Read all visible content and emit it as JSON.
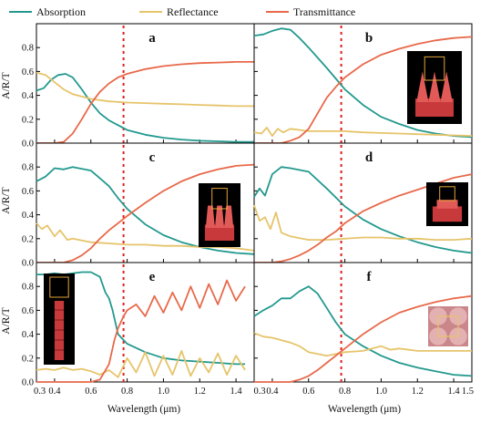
{
  "legend": [
    {
      "label": "Absorption",
      "color": "#23998e"
    },
    {
      "label": "Reflectance",
      "color": "#e6c46a"
    },
    {
      "label": "Transmittance",
      "color": "#e8694a"
    }
  ],
  "colors": {
    "absorption": "#23998e",
    "reflectance": "#e6c46a",
    "transmittance": "#e8694a",
    "marker": "#e0201b"
  },
  "axes": {
    "ylabel": "A/R/T",
    "xlabel": "Wavelength (μm)",
    "yticks": [
      "0.0",
      "0.2",
      "0.4",
      "0.6",
      "0.8"
    ],
    "xticks_left": [
      "0.3",
      "0.4",
      "0.6",
      "0.8",
      "1.0",
      "1.2",
      "1.4"
    ],
    "xticks_right": [
      "0.3",
      "0.4",
      "0.6",
      "0.8",
      "1.0",
      "1.2",
      "1.4",
      "1.5"
    ]
  },
  "chart_data": [
    {
      "panel": "a",
      "type": "line",
      "xlim": [
        0.3,
        1.5
      ],
      "ylim": [
        0,
        1
      ],
      "marker_x": 0.78,
      "inset": "none",
      "series": [
        {
          "name": "Absorption",
          "x": [
            0.3,
            0.34,
            0.38,
            0.42,
            0.46,
            0.5,
            0.55,
            0.6,
            0.65,
            0.7,
            0.8,
            0.9,
            1.0,
            1.1,
            1.2,
            1.3,
            1.4,
            1.5
          ],
          "y": [
            0.44,
            0.46,
            0.53,
            0.57,
            0.58,
            0.55,
            0.45,
            0.34,
            0.25,
            0.19,
            0.11,
            0.07,
            0.045,
            0.03,
            0.02,
            0.015,
            0.01,
            0.01
          ]
        },
        {
          "name": "Reflectance",
          "x": [
            0.3,
            0.35,
            0.4,
            0.45,
            0.5,
            0.6,
            0.7,
            0.8,
            0.9,
            1.0,
            1.1,
            1.2,
            1.3,
            1.4,
            1.5
          ],
          "y": [
            0.59,
            0.57,
            0.51,
            0.45,
            0.41,
            0.37,
            0.35,
            0.34,
            0.335,
            0.33,
            0.325,
            0.32,
            0.315,
            0.31,
            0.31
          ]
        },
        {
          "name": "Transmittance",
          "x": [
            0.3,
            0.4,
            0.45,
            0.5,
            0.55,
            0.6,
            0.65,
            0.7,
            0.75,
            0.8,
            0.9,
            1.0,
            1.1,
            1.2,
            1.3,
            1.4,
            1.5
          ],
          "y": [
            0.0,
            0.0,
            0.01,
            0.08,
            0.2,
            0.33,
            0.43,
            0.5,
            0.55,
            0.58,
            0.62,
            0.645,
            0.66,
            0.67,
            0.675,
            0.68,
            0.68
          ]
        }
      ]
    },
    {
      "panel": "b",
      "type": "line",
      "xlim": [
        0.3,
        1.5
      ],
      "ylim": [
        0,
        1
      ],
      "marker_x": 0.78,
      "inset": "cones",
      "series": [
        {
          "name": "Absorption",
          "x": [
            0.3,
            0.35,
            0.4,
            0.45,
            0.5,
            0.55,
            0.6,
            0.7,
            0.8,
            0.9,
            1.0,
            1.1,
            1.2,
            1.3,
            1.4,
            1.5
          ],
          "y": [
            0.9,
            0.91,
            0.94,
            0.96,
            0.95,
            0.88,
            0.8,
            0.63,
            0.45,
            0.32,
            0.22,
            0.16,
            0.11,
            0.08,
            0.06,
            0.05
          ]
        },
        {
          "name": "Reflectance",
          "x": [
            0.3,
            0.34,
            0.37,
            0.4,
            0.43,
            0.46,
            0.5,
            0.6,
            0.7,
            0.8,
            0.9,
            1.0,
            1.1,
            1.2,
            1.3,
            1.4,
            1.5
          ],
          "y": [
            0.09,
            0.08,
            0.13,
            0.06,
            0.12,
            0.09,
            0.12,
            0.1,
            0.1,
            0.1,
            0.09,
            0.085,
            0.08,
            0.075,
            0.07,
            0.065,
            0.06
          ]
        },
        {
          "name": "Transmittance",
          "x": [
            0.3,
            0.45,
            0.5,
            0.55,
            0.6,
            0.65,
            0.7,
            0.75,
            0.8,
            0.9,
            1.0,
            1.1,
            1.2,
            1.3,
            1.4,
            1.5
          ],
          "y": [
            0.0,
            0.0,
            0.02,
            0.05,
            0.12,
            0.25,
            0.38,
            0.47,
            0.55,
            0.66,
            0.74,
            0.79,
            0.83,
            0.86,
            0.88,
            0.89
          ]
        }
      ]
    },
    {
      "panel": "c",
      "type": "line",
      "xlim": [
        0.3,
        1.5
      ],
      "ylim": [
        0,
        1
      ],
      "marker_x": 0.78,
      "inset": "truncated-cones",
      "series": [
        {
          "name": "Absorption",
          "x": [
            0.3,
            0.35,
            0.4,
            0.45,
            0.5,
            0.6,
            0.7,
            0.75,
            0.8,
            0.9,
            1.0,
            1.1,
            1.2,
            1.3,
            1.4,
            1.5
          ],
          "y": [
            0.68,
            0.72,
            0.79,
            0.78,
            0.8,
            0.77,
            0.64,
            0.54,
            0.45,
            0.32,
            0.23,
            0.17,
            0.13,
            0.1,
            0.08,
            0.07
          ]
        },
        {
          "name": "Reflectance",
          "x": [
            0.3,
            0.33,
            0.36,
            0.4,
            0.43,
            0.47,
            0.5,
            0.6,
            0.7,
            0.8,
            0.9,
            1.0,
            1.1,
            1.2,
            1.3,
            1.4,
            1.5
          ],
          "y": [
            0.33,
            0.28,
            0.31,
            0.22,
            0.27,
            0.19,
            0.2,
            0.17,
            0.16,
            0.15,
            0.15,
            0.14,
            0.14,
            0.13,
            0.13,
            0.12,
            0.1
          ]
        },
        {
          "name": "Transmittance",
          "x": [
            0.3,
            0.45,
            0.5,
            0.55,
            0.6,
            0.65,
            0.7,
            0.75,
            0.8,
            0.9,
            1.0,
            1.1,
            1.2,
            1.3,
            1.4,
            1.5
          ],
          "y": [
            0.0,
            0.0,
            0.02,
            0.06,
            0.12,
            0.2,
            0.27,
            0.33,
            0.39,
            0.5,
            0.6,
            0.68,
            0.74,
            0.78,
            0.81,
            0.82
          ]
        }
      ]
    },
    {
      "panel": "d",
      "type": "line",
      "xlim": [
        0.3,
        1.5
      ],
      "ylim": [
        0,
        1
      ],
      "marker_x": 0.78,
      "inset": "cross-structure",
      "series": [
        {
          "name": "Absorption",
          "x": [
            0.3,
            0.33,
            0.36,
            0.4,
            0.45,
            0.5,
            0.6,
            0.7,
            0.8,
            0.9,
            1.0,
            1.1,
            1.2,
            1.3,
            1.4,
            1.5
          ],
          "y": [
            0.55,
            0.62,
            0.56,
            0.74,
            0.8,
            0.79,
            0.76,
            0.62,
            0.47,
            0.36,
            0.28,
            0.22,
            0.17,
            0.13,
            0.1,
            0.08
          ]
        },
        {
          "name": "Reflectance",
          "x": [
            0.3,
            0.33,
            0.36,
            0.39,
            0.42,
            0.45,
            0.5,
            0.6,
            0.7,
            0.8,
            0.9,
            1.0,
            1.1,
            1.2,
            1.3,
            1.4,
            1.5
          ],
          "y": [
            0.48,
            0.35,
            0.38,
            0.28,
            0.42,
            0.25,
            0.22,
            0.19,
            0.19,
            0.2,
            0.21,
            0.21,
            0.2,
            0.2,
            0.19,
            0.19,
            0.2
          ]
        },
        {
          "name": "Transmittance",
          "x": [
            0.3,
            0.4,
            0.45,
            0.5,
            0.55,
            0.6,
            0.65,
            0.7,
            0.75,
            0.8,
            0.9,
            1.0,
            1.1,
            1.2,
            1.3,
            1.4,
            1.5
          ],
          "y": [
            0.0,
            0.0,
            0.01,
            0.03,
            0.06,
            0.1,
            0.15,
            0.21,
            0.26,
            0.33,
            0.43,
            0.5,
            0.56,
            0.61,
            0.66,
            0.71,
            0.74
          ]
        }
      ]
    },
    {
      "panel": "e",
      "type": "line",
      "xlim": [
        0.3,
        1.5
      ],
      "ylim": [
        0,
        1
      ],
      "marker_x": 0.78,
      "inset": "stacked-pillar",
      "series": [
        {
          "name": "Absorption",
          "x": [
            0.3,
            0.35,
            0.4,
            0.45,
            0.5,
            0.55,
            0.6,
            0.65,
            0.68,
            0.7,
            0.72,
            0.75,
            0.8,
            0.9,
            1.0,
            1.1,
            1.2,
            1.3,
            1.4,
            1.45
          ],
          "y": [
            0.9,
            0.9,
            0.91,
            0.9,
            0.91,
            0.92,
            0.92,
            0.88,
            0.75,
            0.7,
            0.6,
            0.4,
            0.32,
            0.25,
            0.2,
            0.18,
            0.17,
            0.16,
            0.15,
            0.15
          ]
        },
        {
          "name": "Reflectance",
          "x": [
            0.3,
            0.35,
            0.4,
            0.45,
            0.5,
            0.55,
            0.6,
            0.65,
            0.7,
            0.75,
            0.8,
            0.85,
            0.9,
            0.95,
            1.0,
            1.05,
            1.1,
            1.15,
            1.2,
            1.25,
            1.3,
            1.35,
            1.4,
            1.45
          ],
          "y": [
            0.1,
            0.11,
            0.1,
            0.12,
            0.1,
            0.11,
            0.09,
            0.06,
            0.1,
            0.04,
            0.2,
            0.08,
            0.25,
            0.05,
            0.22,
            0.06,
            0.26,
            0.05,
            0.2,
            0.08,
            0.24,
            0.06,
            0.22,
            0.1
          ]
        },
        {
          "name": "Transmittance",
          "x": [
            0.3,
            0.6,
            0.65,
            0.7,
            0.73,
            0.75,
            0.78,
            0.8,
            0.85,
            0.9,
            0.95,
            1.0,
            1.05,
            1.1,
            1.15,
            1.2,
            1.25,
            1.3,
            1.35,
            1.4,
            1.45
          ],
          "y": [
            0.0,
            0.0,
            0.02,
            0.15,
            0.35,
            0.45,
            0.55,
            0.6,
            0.65,
            0.55,
            0.72,
            0.58,
            0.75,
            0.6,
            0.8,
            0.62,
            0.82,
            0.65,
            0.85,
            0.68,
            0.8
          ]
        }
      ]
    },
    {
      "panel": "f",
      "type": "line",
      "xlim": [
        0.3,
        1.5
      ],
      "ylim": [
        0,
        1
      ],
      "marker_x": 0.78,
      "inset": "top-view",
      "series": [
        {
          "name": "Absorption",
          "x": [
            0.3,
            0.35,
            0.4,
            0.45,
            0.5,
            0.55,
            0.6,
            0.65,
            0.7,
            0.75,
            0.8,
            0.9,
            1.0,
            1.1,
            1.2,
            1.3,
            1.4,
            1.5
          ],
          "y": [
            0.55,
            0.6,
            0.64,
            0.7,
            0.7,
            0.76,
            0.8,
            0.74,
            0.62,
            0.5,
            0.4,
            0.3,
            0.22,
            0.16,
            0.12,
            0.09,
            0.06,
            0.05
          ]
        },
        {
          "name": "Reflectance",
          "x": [
            0.3,
            0.35,
            0.4,
            0.45,
            0.5,
            0.55,
            0.6,
            0.7,
            0.8,
            0.9,
            1.0,
            1.05,
            1.1,
            1.2,
            1.3,
            1.4,
            1.5
          ],
          "y": [
            0.41,
            0.38,
            0.37,
            0.35,
            0.33,
            0.3,
            0.25,
            0.22,
            0.25,
            0.26,
            0.3,
            0.27,
            0.28,
            0.26,
            0.26,
            0.26,
            0.26
          ]
        },
        {
          "name": "Transmittance",
          "x": [
            0.3,
            0.5,
            0.55,
            0.6,
            0.65,
            0.7,
            0.75,
            0.8,
            0.9,
            1.0,
            1.1,
            1.2,
            1.3,
            1.4,
            1.5
          ],
          "y": [
            0.0,
            0.0,
            0.02,
            0.05,
            0.1,
            0.16,
            0.22,
            0.28,
            0.4,
            0.5,
            0.58,
            0.63,
            0.67,
            0.7,
            0.72
          ]
        }
      ]
    }
  ]
}
